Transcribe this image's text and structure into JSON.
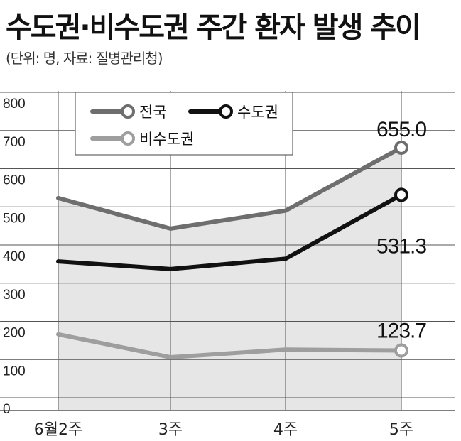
{
  "header": {
    "title": "수도권·비수도권 주간 환자 발생 추이",
    "subtitle": "(단위: 명, 자료: 질병관리청)"
  },
  "chart_data": {
    "type": "line",
    "title": "수도권·비수도권 주간 환자 발생 추이",
    "unit_note": "(단위: 명, 자료: 질병관리청)",
    "categories": [
      "6월2주",
      "3주",
      "4주",
      "5주"
    ],
    "ylim": [
      0,
      800
    ],
    "yticks": [
      0,
      100,
      200,
      300,
      400,
      500,
      600,
      700,
      800
    ],
    "grid": true,
    "legend_position": "top-left",
    "series": [
      {
        "name": "전국",
        "values": [
          523,
          443,
          490,
          655.0
        ],
        "color": "#6e6e6e"
      },
      {
        "name": "수도권",
        "values": [
          357,
          337,
          364,
          531.3
        ],
        "color": "#111111"
      },
      {
        "name": "비수도권",
        "values": [
          166,
          106,
          126,
          123.7
        ],
        "color": "#9e9e9e"
      }
    ],
    "annotations": [
      {
        "series": 0,
        "point": 3,
        "text": "655.0"
      },
      {
        "series": 1,
        "point": 3,
        "text": "531.3"
      },
      {
        "series": 2,
        "point": 3,
        "text": "123.7"
      }
    ],
    "fill_color": "#e6e6e6"
  }
}
